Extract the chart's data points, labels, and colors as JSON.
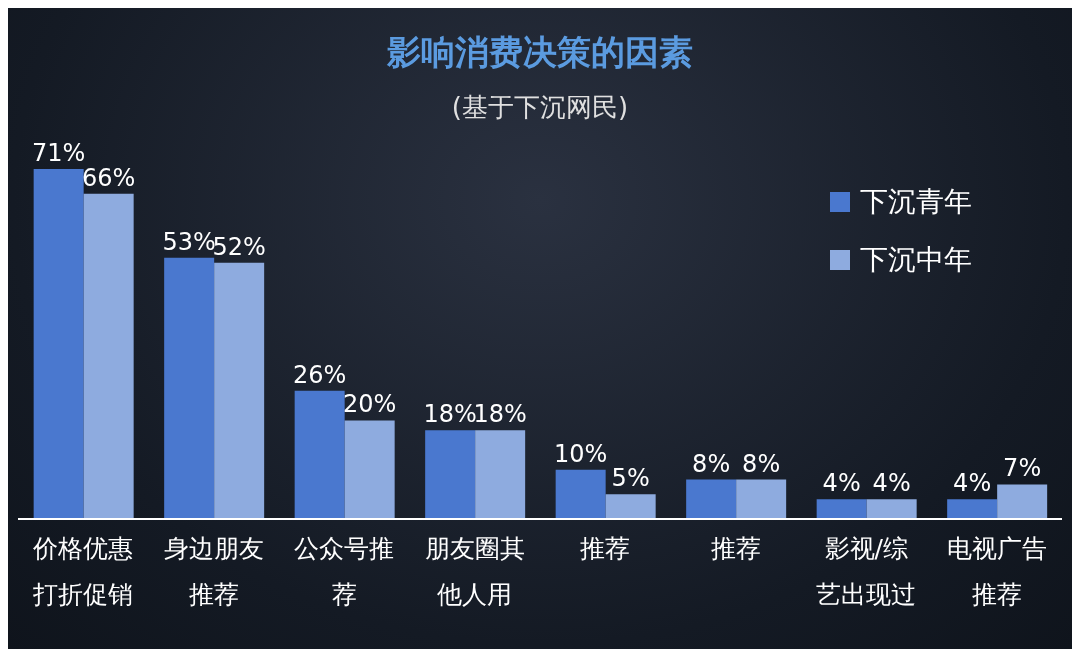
{
  "chart_data": {
    "type": "bar",
    "title": "影响消费决策的因素",
    "subtitle": "(基于下沉网民)",
    "categories": [
      "价格优惠打折促销",
      "身边朋友推荐",
      "公众号推荐",
      "朋友圈其他人用",
      "推荐",
      "推荐",
      "影视/综艺出现过",
      "电视广告推荐"
    ],
    "series": [
      {
        "name": "下沉青年",
        "color": "#4a78cf",
        "values": [
          71,
          53,
          26,
          18,
          10,
          8,
          4,
          4
        ],
        "value_labels": [
          "71%",
          "53%",
          "26%",
          "18%",
          "10%",
          "8%",
          "4%",
          "4%"
        ]
      },
      {
        "name": "下沉中年",
        "color": "#8eabdf",
        "values": [
          66,
          52,
          20,
          18,
          5,
          8,
          4,
          7
        ],
        "value_labels": [
          "66%",
          "52%",
          "20%",
          "18%",
          "5%",
          "8%",
          "4%",
          "7%"
        ]
      }
    ],
    "legend": "top right",
    "grid": false
  }
}
